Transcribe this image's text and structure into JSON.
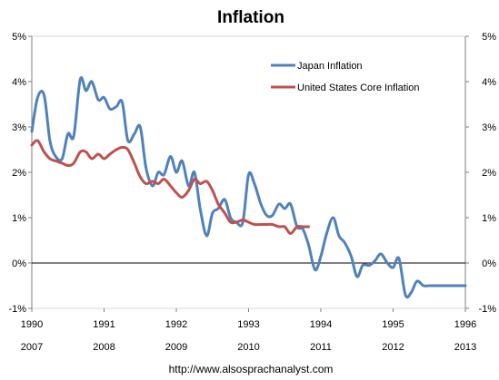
{
  "chart_data": {
    "type": "line",
    "title": "Inflation",
    "footer": "http://www.alsosprachanalyst.com",
    "y_ticks": [
      "5%",
      "4%",
      "3%",
      "2%",
      "1%",
      "0%",
      "-1%"
    ],
    "y_tick_values": [
      5,
      4,
      3,
      2,
      1,
      0,
      -1
    ],
    "ylim": [
      -1,
      5
    ],
    "xlim": [
      1990,
      1996
    ],
    "x_ticks_top": [
      "1990",
      "1991",
      "1992",
      "1993",
      "1994",
      "1995",
      "1996"
    ],
    "x_tick_values": [
      1990,
      1991,
      1992,
      1993,
      1994,
      1995,
      1996
    ],
    "x_ticks_bottom": [
      "2007",
      "2008",
      "2009",
      "2010",
      "2011",
      "2012",
      "2013"
    ],
    "legend_position": "top-right",
    "grid": false,
    "zero_line": true,
    "series": [
      {
        "name": "Japan Inflation",
        "color": "#4f81bd",
        "x": [
          1990.0,
          1990.08,
          1990.17,
          1990.25,
          1990.33,
          1990.42,
          1990.5,
          1990.58,
          1990.67,
          1990.75,
          1990.83,
          1990.92,
          1991.0,
          1991.08,
          1991.17,
          1991.25,
          1991.33,
          1991.42,
          1991.5,
          1991.58,
          1991.67,
          1991.75,
          1991.83,
          1991.92,
          1992.0,
          1992.08,
          1992.17,
          1992.25,
          1992.33,
          1992.42,
          1992.5,
          1992.58,
          1992.67,
          1992.75,
          1992.83,
          1992.92,
          1993.0,
          1993.08,
          1993.17,
          1993.25,
          1993.33,
          1993.42,
          1993.5,
          1993.58,
          1993.67,
          1993.75,
          1993.83,
          1993.92,
          1994.0,
          1994.08,
          1994.17,
          1994.25,
          1994.33,
          1994.42,
          1994.5,
          1994.58,
          1994.67,
          1994.75,
          1994.83,
          1994.92,
          1995.0,
          1995.08,
          1995.17,
          1995.25,
          1995.33,
          1995.42,
          1995.5,
          1995.58,
          1995.67,
          1995.75,
          1995.83,
          1995.92,
          1996.0
        ],
        "y": [
          2.9,
          3.65,
          3.7,
          2.7,
          2.35,
          2.3,
          2.85,
          2.8,
          4.05,
          3.8,
          4.0,
          3.6,
          3.65,
          3.4,
          3.45,
          3.55,
          2.7,
          2.85,
          3.0,
          2.1,
          1.7,
          2.0,
          1.95,
          2.35,
          2.0,
          2.25,
          1.7,
          2.0,
          1.2,
          0.6,
          1.1,
          1.2,
          1.4,
          1.0,
          0.9,
          0.9,
          1.95,
          1.75,
          1.3,
          1.05,
          1.05,
          1.3,
          1.2,
          1.3,
          0.8,
          0.75,
          0.4,
          -0.15,
          0.15,
          0.65,
          1.0,
          0.6,
          0.45,
          0.15,
          -0.3,
          -0.05,
          -0.05,
          0.05,
          0.2,
          0.0,
          -0.1,
          0.1,
          -0.7,
          -0.65,
          -0.4,
          -0.5,
          -0.5,
          -0.5,
          -0.5,
          -0.5,
          -0.5,
          -0.5,
          -0.5
        ]
      },
      {
        "name": "United States Core Inflation",
        "color": "#c0504d",
        "x": [
          1990.0,
          1990.08,
          1990.17,
          1990.25,
          1990.33,
          1990.42,
          1990.5,
          1990.58,
          1990.67,
          1990.75,
          1990.83,
          1990.92,
          1991.0,
          1991.08,
          1991.17,
          1991.25,
          1991.33,
          1991.42,
          1991.5,
          1991.58,
          1991.67,
          1991.75,
          1991.83,
          1991.92,
          1992.0,
          1992.08,
          1992.17,
          1992.25,
          1992.33,
          1992.42,
          1992.5,
          1992.58,
          1992.67,
          1992.75,
          1992.83,
          1992.92,
          1993.0,
          1993.08,
          1993.17,
          1993.25,
          1993.33,
          1993.42,
          1993.5,
          1993.58,
          1993.67,
          1993.75,
          1993.83
        ],
        "y": [
          2.6,
          2.7,
          2.45,
          2.3,
          2.25,
          2.2,
          2.15,
          2.2,
          2.45,
          2.45,
          2.3,
          2.4,
          2.3,
          2.4,
          2.5,
          2.55,
          2.5,
          2.2,
          1.9,
          1.75,
          1.8,
          1.75,
          1.85,
          1.7,
          1.55,
          1.45,
          1.6,
          1.85,
          1.75,
          1.8,
          1.6,
          1.3,
          1.1,
          0.9,
          0.9,
          0.95,
          0.9,
          0.85,
          0.85,
          0.85,
          0.85,
          0.8,
          0.8,
          0.65,
          0.8,
          0.8,
          0.8
        ]
      }
    ]
  }
}
